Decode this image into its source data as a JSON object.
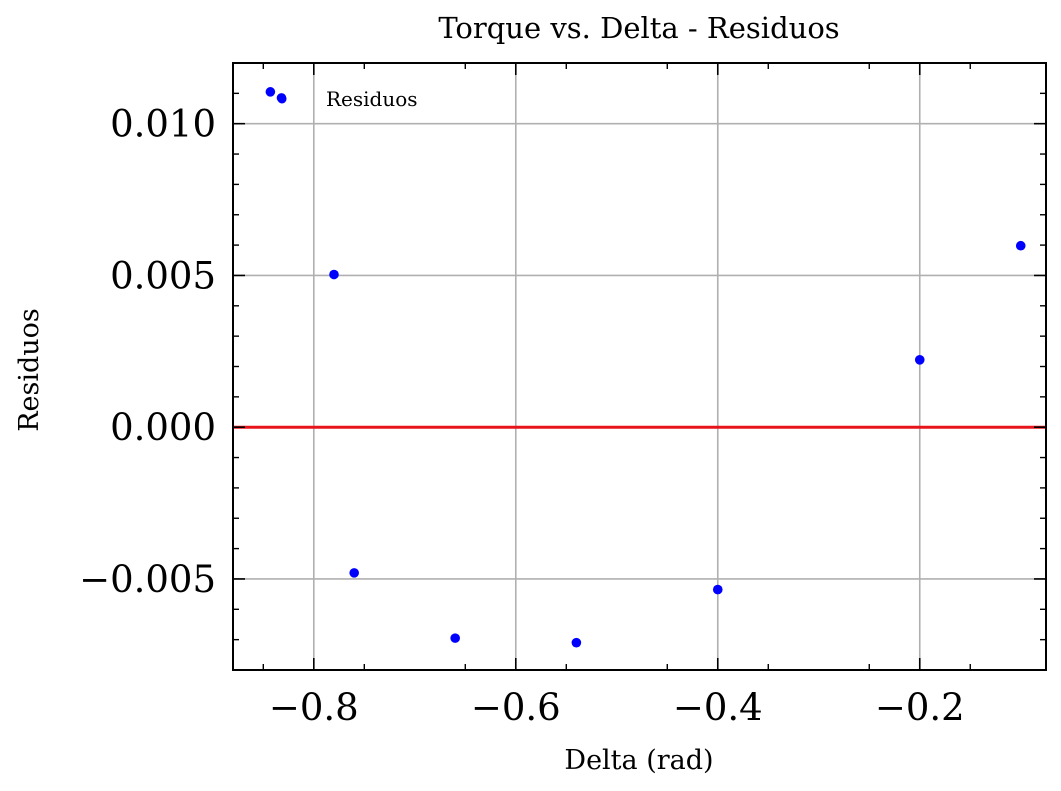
{
  "chart_data": {
    "type": "scatter",
    "title": "Torque vs. Delta - Residuos",
    "xlabel": "Delta (rad)",
    "ylabel": "Residuos",
    "xlim": [
      -0.88,
      -0.075
    ],
    "ylim": [
      -0.008,
      0.012
    ],
    "xticks": [
      -0.8,
      -0.6,
      -0.4,
      -0.2
    ],
    "xtick_labels": [
      "−0.8",
      "−0.6",
      "−0.4",
      "−0.2"
    ],
    "yticks": [
      -0.005,
      0.0,
      0.005,
      0.01
    ],
    "ytick_labels": [
      "−0.005",
      "0.000",
      "0.005",
      "0.010"
    ],
    "grid": true,
    "legend_position": "top-left",
    "reference_line": {
      "y": 0.0,
      "color": "#e8141c"
    },
    "series": [
      {
        "name": "Residuos",
        "color": "#0000ff",
        "x": [
          -0.843,
          -0.832,
          -0.78,
          -0.76,
          -0.66,
          -0.54,
          -0.4,
          -0.2,
          -0.1
        ],
        "y": [
          0.01105,
          0.01085,
          0.00503,
          -0.0048,
          -0.00695,
          -0.0071,
          -0.00535,
          0.00222,
          0.00598
        ]
      }
    ]
  }
}
